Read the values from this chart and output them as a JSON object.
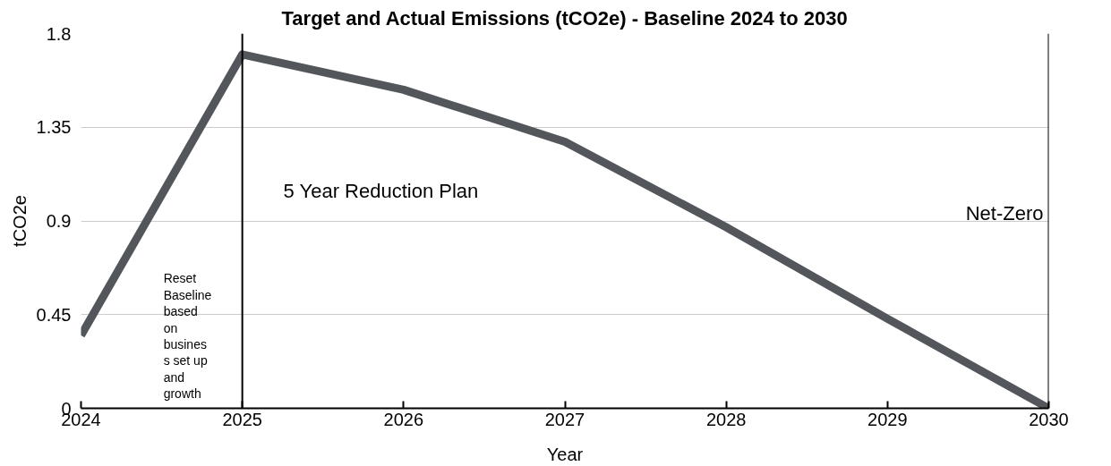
{
  "chart_data": {
    "type": "line",
    "title": "Target and Actual Emissions (tCO2e) - Baseline 2024 to 2030",
    "xlabel": "Year",
    "ylabel": "tCO2e",
    "x": [
      2024,
      2025,
      2026,
      2027,
      2028,
      2029,
      2030
    ],
    "series": [
      {
        "color": "#53575c",
        "values": [
          0.35,
          1.7,
          1.53,
          1.28,
          0.87,
          0.43,
          0
        ]
      }
    ],
    "xlim": [
      2024,
      2030
    ],
    "xticks": [
      2024,
      2025,
      2026,
      2027,
      2028,
      2029,
      2030
    ],
    "ylim": [
      0,
      1.8
    ],
    "yticks": [
      0,
      0.45,
      0.9,
      1.35,
      1.8
    ],
    "grid": "y",
    "marker": "none",
    "line_style": "solid",
    "ref_lines": [
      {
        "axis": "x",
        "value": 2025,
        "label": "Reset\nBaseline\nbased\non\nbusines\ns set up\nand\ngrowth",
        "color": "#000000"
      },
      {
        "axis": "x",
        "value": 2030,
        "label": "Net-Zero",
        "color": "#000000"
      }
    ],
    "annotations": [
      "5 Year Reduction Plan"
    ]
  }
}
